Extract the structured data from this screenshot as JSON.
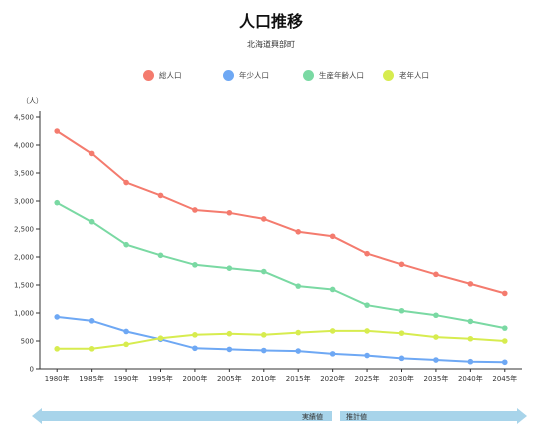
{
  "title": "人口推移",
  "subtitle": "北海道興部町",
  "arrows": {
    "left_label": "実績値",
    "right_label": "推計値"
  },
  "colors": {
    "total": "#f47b6e",
    "young": "#6ea8f4",
    "working": "#7ad9a3",
    "elderly": "#d7ec4f",
    "axis": "#333333",
    "arrow": "#a8d4ea"
  },
  "chart_data": {
    "type": "line",
    "title": "人口推移",
    "subtitle": "北海道興部町",
    "ylabel": "（人）",
    "xlabel": "",
    "ylim": [
      0,
      4500
    ],
    "yticks": [
      0,
      500,
      1000,
      1500,
      2000,
      2500,
      3000,
      3500,
      4000,
      4500
    ],
    "ytick_labels": [
      "0",
      "500",
      "1,000",
      "1,500",
      "2,000",
      "2,500",
      "3,000",
      "3,500",
      "4,000",
      "4,500"
    ],
    "categories": [
      "1980年",
      "1985年",
      "1990年",
      "1995年",
      "2000年",
      "2005年",
      "2010年",
      "2015年",
      "2020年",
      "2025年",
      "2030年",
      "2035年",
      "2040年",
      "2045年"
    ],
    "grid": false,
    "legend_position": "top",
    "series": [
      {
        "name": "総人口",
        "color_key": "total",
        "values": [
          4250,
          3850,
          3330,
          3100,
          2840,
          2790,
          2680,
          2450,
          2370,
          2060,
          1870,
          1690,
          1520,
          1350
        ]
      },
      {
        "name": "年少人口",
        "color_key": "young",
        "values": [
          930,
          860,
          670,
          530,
          370,
          350,
          330,
          320,
          270,
          240,
          190,
          160,
          130,
          120
        ]
      },
      {
        "name": "生産年齢人口",
        "color_key": "working",
        "values": [
          2970,
          2630,
          2220,
          2030,
          1860,
          1800,
          1740,
          1480,
          1420,
          1140,
          1040,
          960,
          850,
          730
        ]
      },
      {
        "name": "老年人口",
        "color_key": "elderly",
        "values": [
          360,
          360,
          440,
          550,
          610,
          630,
          610,
          650,
          680,
          680,
          640,
          570,
          540,
          500
        ]
      }
    ]
  }
}
